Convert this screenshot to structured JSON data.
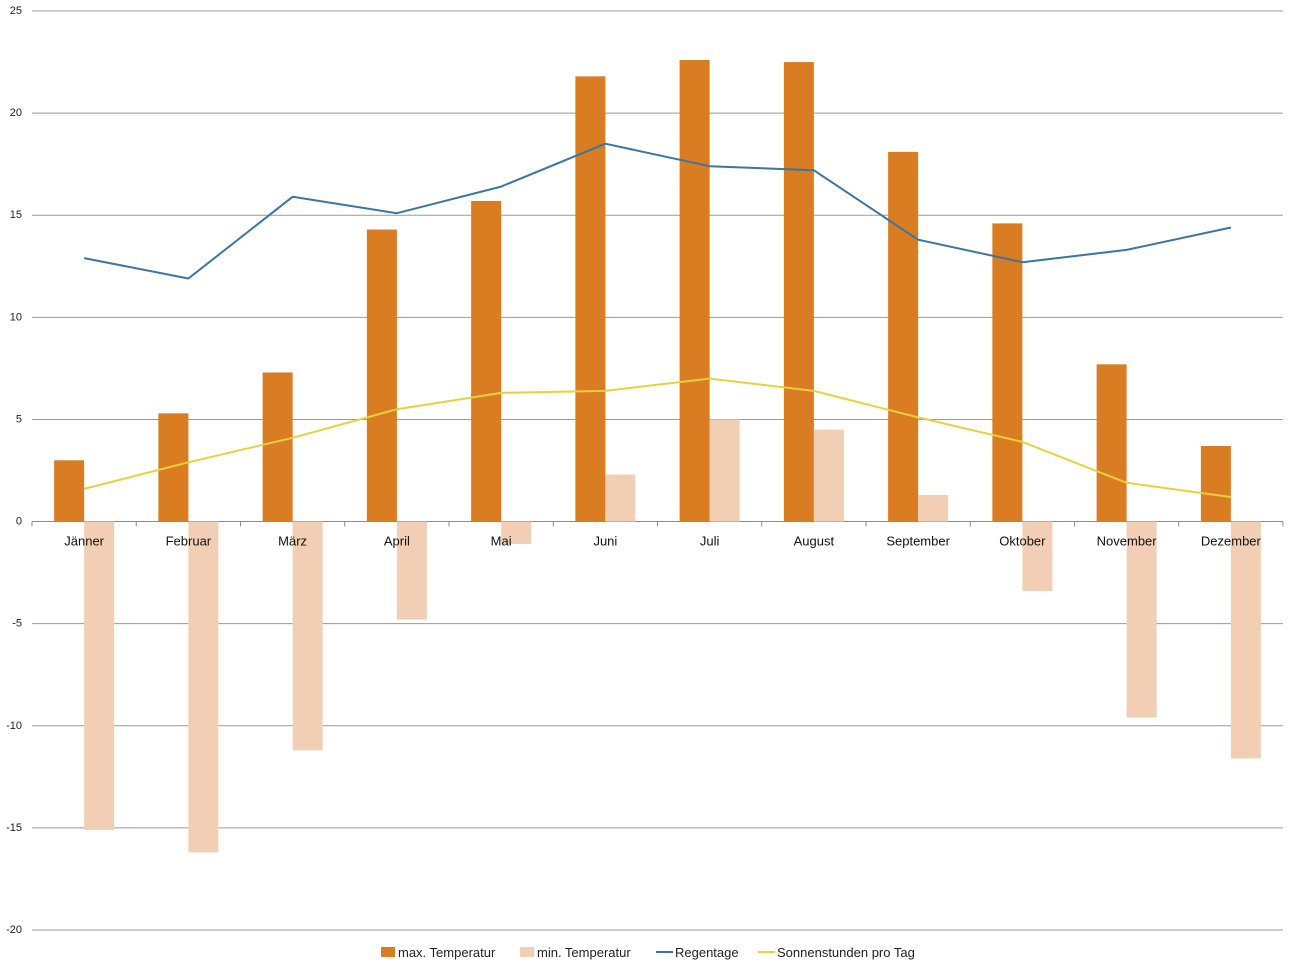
{
  "chart_data": {
    "type": "bar",
    "title": "",
    "xlabel": "",
    "ylabel": "",
    "ylim": [
      -20,
      25
    ],
    "yticks": [
      25,
      20,
      15,
      10,
      5,
      0,
      -5,
      -10,
      -15,
      -20
    ],
    "grid": true,
    "legend_position": "bottom",
    "categories": [
      "Jänner",
      "Februar",
      "März",
      "April",
      "Mai",
      "Juni",
      "Juli",
      "August",
      "September",
      "Oktober",
      "November",
      "Dezember"
    ],
    "series": [
      {
        "name": "max. Temperatur",
        "kind": "bar",
        "color": "#d97c22",
        "values": [
          3.0,
          5.3,
          7.3,
          14.3,
          15.7,
          21.8,
          22.6,
          22.5,
          18.1,
          14.6,
          7.7,
          3.7
        ]
      },
      {
        "name": "min. Temperatur",
        "kind": "bar",
        "color": "#f2cfb4",
        "values": [
          -15.1,
          -16.2,
          -11.2,
          -4.8,
          -1.1,
          2.3,
          5.0,
          4.5,
          1.3,
          -3.4,
          -9.6,
          -11.6
        ]
      },
      {
        "name": "Regentage",
        "kind": "line",
        "color": "#3a76a0",
        "values": [
          12.9,
          11.9,
          15.9,
          15.1,
          16.4,
          18.5,
          17.4,
          17.2,
          13.8,
          12.7,
          13.3,
          14.4
        ]
      },
      {
        "name": "Sonnenstunden pro Tag",
        "kind": "line",
        "color": "#e6d23c",
        "values": [
          1.6,
          2.9,
          4.1,
          5.5,
          6.3,
          6.4,
          7.0,
          6.4,
          5.1,
          3.9,
          1.9,
          1.2
        ]
      }
    ]
  }
}
